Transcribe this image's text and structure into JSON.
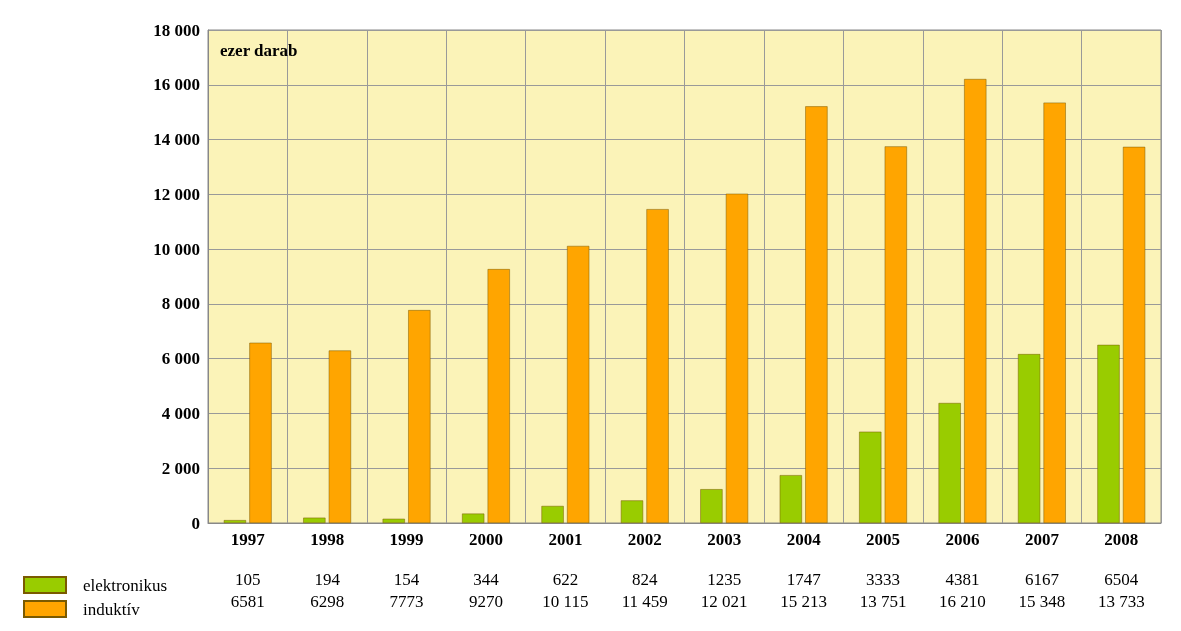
{
  "chart_data": {
    "type": "bar",
    "ylabel": "ezer darab",
    "categories": [
      "1997",
      "1998",
      "1999",
      "2000",
      "2001",
      "2002",
      "2003",
      "2004",
      "2005",
      "2006",
      "2007",
      "2008"
    ],
    "series": [
      {
        "name": "elektronikus",
        "color": "#99cc00",
        "values": [
          105,
          194,
          154,
          344,
          622,
          824,
          1235,
          1747,
          3333,
          4381,
          6167,
          6504
        ],
        "value_labels": [
          "105",
          "194",
          "154",
          "344",
          "622",
          "824",
          "1235",
          "1747",
          "3333",
          "4381",
          "6167",
          "6504"
        ]
      },
      {
        "name": "induktív",
        "color": "#ffa500",
        "values": [
          6581,
          6298,
          7773,
          9270,
          10115,
          11459,
          12021,
          15213,
          13751,
          16210,
          15348,
          13733
        ],
        "value_labels": [
          "6581",
          "6298",
          "7773",
          "9270",
          "10 115",
          "11 459",
          "12 021",
          "15 213",
          "13 751",
          "16 210",
          "15 348",
          "13 733"
        ]
      }
    ],
    "ylim": [
      0,
      18000
    ],
    "yticks": [
      0,
      {
        "value": 2000,
        "label": "2 000"
      },
      {
        "value": 4000,
        "label": "4 000"
      },
      {
        "value": 6000,
        "label": "6 000"
      },
      {
        "value": 8000,
        "label": "8 000"
      },
      {
        "value": 10000,
        "label": "10 000"
      },
      {
        "value": 12000,
        "label": "12 000"
      },
      {
        "value": 14000,
        "label": "14 000"
      },
      {
        "value": 16000,
        "label": "16 000"
      },
      {
        "value": 18000,
        "label": "18 000"
      }
    ],
    "grid": true,
    "legend": "bottom left"
  }
}
